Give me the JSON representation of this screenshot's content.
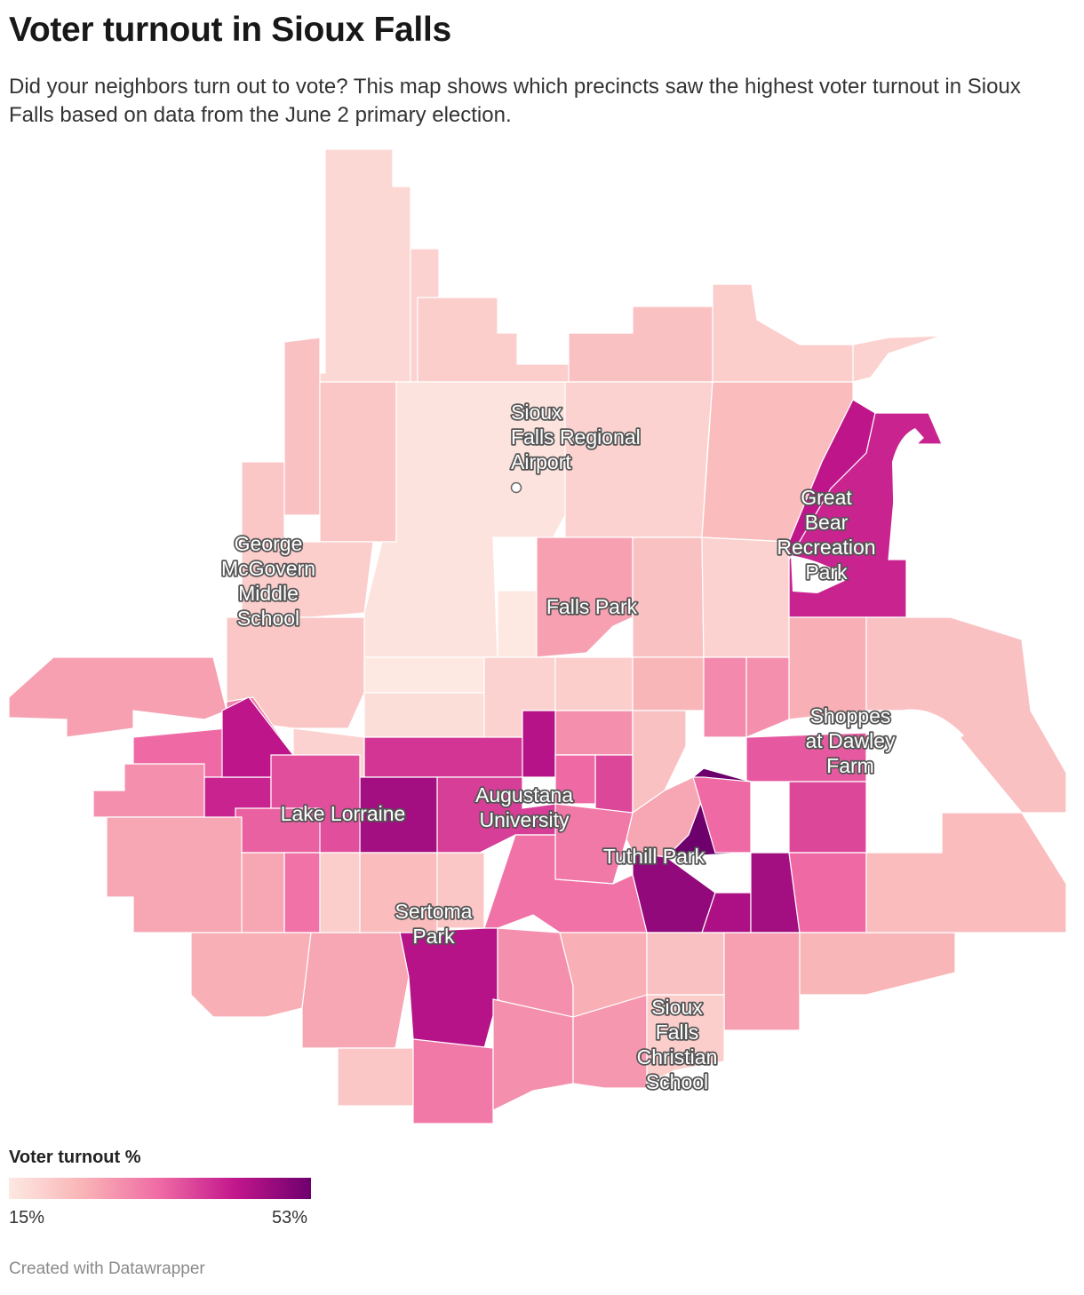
{
  "title": "Voter turnout in Sioux Falls",
  "subtitle": "Did your neighbors turn out to vote? This map shows which precincts saw the highest voter turnout in Sioux Falls based on data from the June 2 primary election.",
  "legend": {
    "title": "Voter turnout %",
    "min_label": "15%",
    "max_label": "53%",
    "min": 15,
    "max": 53,
    "colors": [
      "#fde9e2",
      "#f9b3b6",
      "#ef6aa4",
      "#c2168c",
      "#6e006e"
    ]
  },
  "credit": "Created with Datawrapper",
  "places": [
    {
      "name": "Sioux Falls Regional Airport",
      "lines": [
        "Sioux",
        "Falls Regional",
        "Airport"
      ],
      "marker": true
    },
    {
      "name": "Great Bear Recreation Park",
      "lines": [
        "Great",
        "Bear",
        "Recreation",
        "Park"
      ]
    },
    {
      "name": "George McGovern Middle School",
      "lines": [
        "George",
        "McGovern",
        "Middle",
        "School"
      ]
    },
    {
      "name": "Falls Park",
      "lines": [
        "Falls Park"
      ]
    },
    {
      "name": "Shoppes at Dawley Farm",
      "lines": [
        "Shoppes",
        "at Dawley",
        "Farm"
      ]
    },
    {
      "name": "Lake Lorraine",
      "lines": [
        "Lake Lorraine"
      ]
    },
    {
      "name": "Augustana University",
      "lines": [
        "Augustana",
        "University"
      ]
    },
    {
      "name": "Tuthill Park",
      "lines": [
        "Tuthill Park"
      ]
    },
    {
      "name": "Sertoma Park",
      "lines": [
        "Sertoma",
        "Park"
      ]
    },
    {
      "name": "Sioux Falls Christian School",
      "lines": [
        "Sioux",
        "Falls",
        "Christian",
        "School"
      ]
    }
  ],
  "precincts": [
    {
      "t": 18
    },
    {
      "t": 19
    },
    {
      "t": 20
    },
    {
      "t": 22
    },
    {
      "t": 20
    },
    {
      "t": 19
    },
    {
      "t": 22
    },
    {
      "t": 21
    },
    {
      "t": 21
    },
    {
      "t": 20
    },
    {
      "t": 16
    },
    {
      "t": 15
    },
    {
      "t": 19
    },
    {
      "t": 23
    },
    {
      "t": 44
    },
    {
      "t": 42
    },
    {
      "t": 27
    },
    {
      "t": 22
    },
    {
      "t": 19
    },
    {
      "t": 21
    },
    {
      "t": 17
    },
    {
      "t": 19
    },
    {
      "t": 20
    },
    {
      "t": 24
    },
    {
      "t": 27
    },
    {
      "t": 25
    },
    {
      "t": 22
    },
    {
      "t": 29
    },
    {
      "t": 30
    },
    {
      "t": 19
    },
    {
      "t": 27
    },
    {
      "t": 24
    },
    {
      "t": 29
    },
    {
      "t": 40
    },
    {
      "t": 41
    },
    {
      "t": 34
    },
    {
      "t": 31
    },
    {
      "t": 38
    },
    {
      "t": 22
    },
    {
      "t": 45
    },
    {
      "t": 36
    },
    {
      "t": 26
    },
    {
      "t": 53
    },
    {
      "t": 49
    },
    {
      "t": 46
    },
    {
      "t": 47
    },
    {
      "t": 34
    },
    {
      "t": 32
    },
    {
      "t": 34
    },
    {
      "t": 39
    },
    {
      "t": 33
    },
    {
      "t": 45
    },
    {
      "t": 29
    },
    {
      "t": 25
    },
    {
      "t": 22
    },
    {
      "t": 38
    },
    {
      "t": 34
    },
    {
      "t": 47
    },
    {
      "t": 42
    },
    {
      "t": 44
    },
    {
      "t": 37
    },
    {
      "t": 35
    },
    {
      "t": 33
    },
    {
      "t": 26
    },
    {
      "t": 29
    },
    {
      "t": 26
    },
    {
      "t": 20
    },
    {
      "t": 23
    },
    {
      "t": 21
    },
    {
      "t": 25
    },
    {
      "t": 26
    },
    {
      "t": 21
    },
    {
      "t": 32
    },
    {
      "t": 29
    },
    {
      "t": 28
    },
    {
      "t": 27
    },
    {
      "t": 24
    },
    {
      "t": 23
    },
    {
      "t": 20
    },
    {
      "t": 22
    },
    {
      "t": 30
    },
    {
      "t": 22
    },
    {
      "t": 23
    }
  ]
}
